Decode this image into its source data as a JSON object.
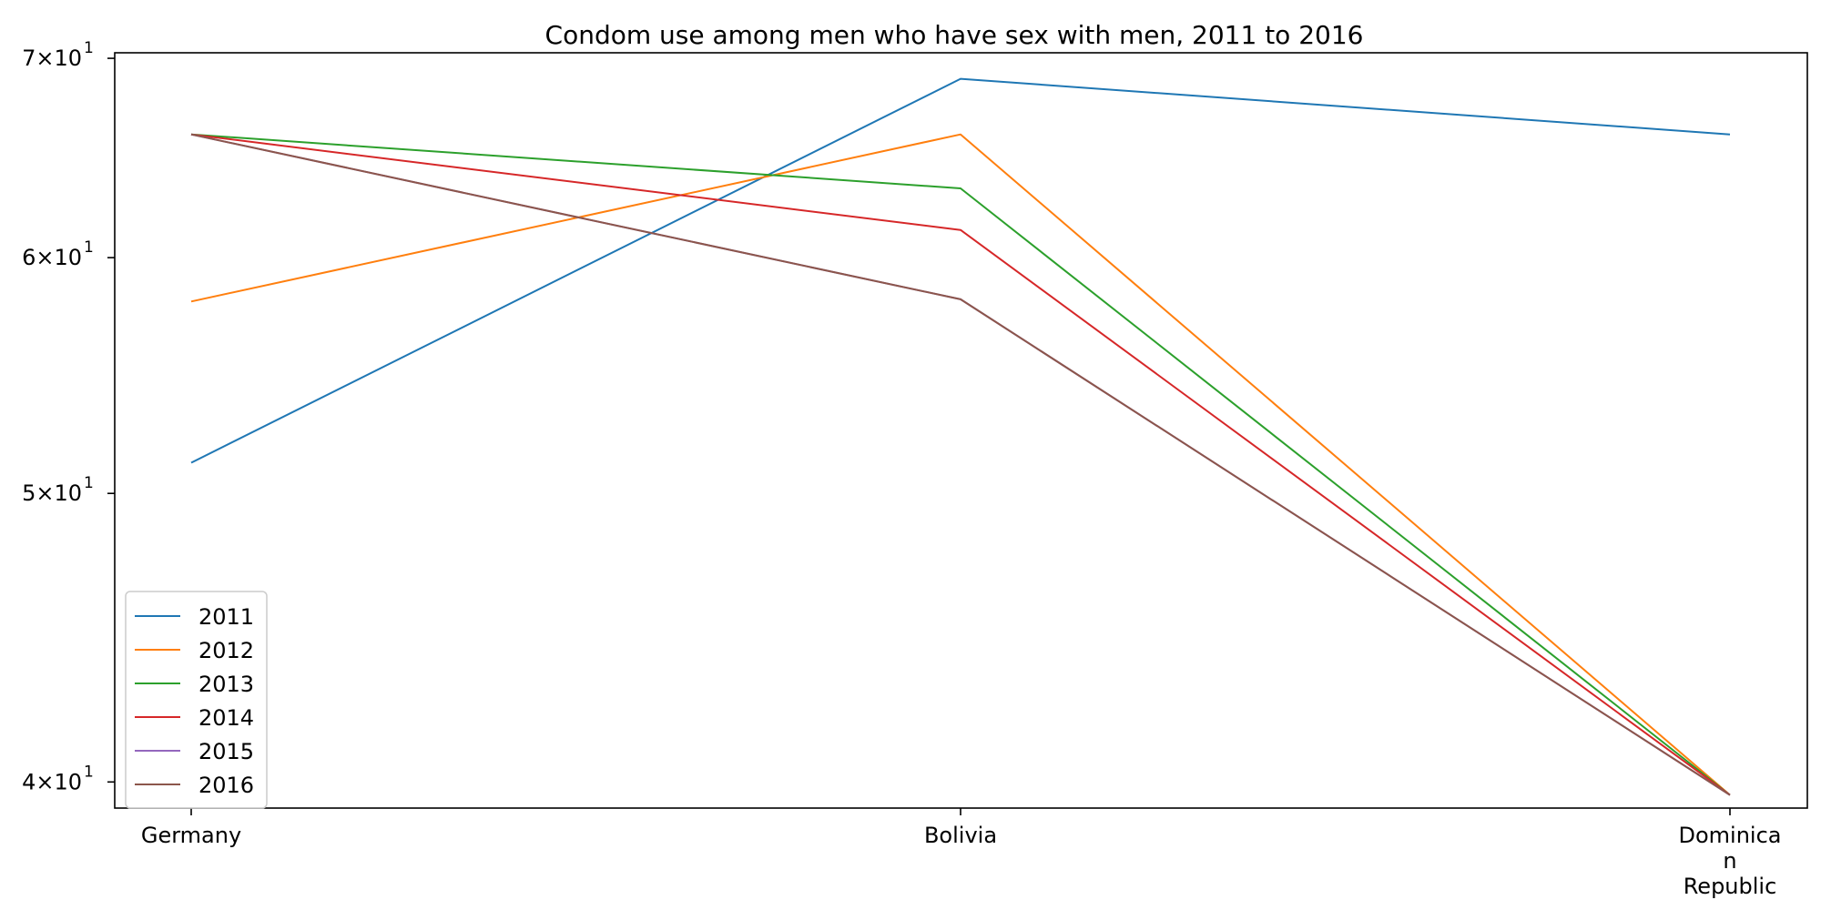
{
  "chart_data": {
    "type": "line",
    "title": "Condom use among men who have sex with men, 2011 to 2016",
    "xlabel": "",
    "ylabel": "",
    "yscale": "log",
    "ylim": [
      39.2,
      70.3
    ],
    "categories": [
      "Germany",
      "Bolivia",
      "Dominican Republic"
    ],
    "category_tick_lines": [
      [
        "Germany"
      ],
      [
        "Bolivia"
      ],
      [
        "Dominica",
        "n",
        "Republic"
      ]
    ],
    "y_ticks": [
      {
        "value": 40,
        "base": "4×10",
        "exp": "1"
      },
      {
        "value": 50,
        "base": "5×10",
        "exp": "1"
      },
      {
        "value": 60,
        "base": "6×10",
        "exp": "1"
      },
      {
        "value": 70,
        "base": "7×10",
        "exp": "1"
      }
    ],
    "grid": false,
    "legend_position": "lower-left",
    "series": [
      {
        "name": "2011",
        "color": "#1f77b4",
        "values": [
          51.2,
          68.9,
          66.0
        ]
      },
      {
        "name": "2012",
        "color": "#ff7f0e",
        "values": [
          58.0,
          66.0,
          39.6
        ]
      },
      {
        "name": "2013",
        "color": "#2ca02c",
        "values": [
          66.0,
          63.3,
          39.6
        ]
      },
      {
        "name": "2014",
        "color": "#d62728",
        "values": [
          66.0,
          61.3,
          39.6
        ]
      },
      {
        "name": "2015",
        "color": "#9467bd",
        "values": [
          66.0,
          58.1,
          39.6
        ]
      },
      {
        "name": "2016",
        "color": "#8c564b",
        "values": [
          66.0,
          58.1,
          39.6
        ]
      }
    ]
  }
}
